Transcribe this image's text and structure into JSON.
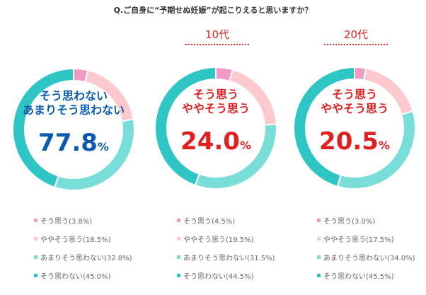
{
  "title": "Q.ご自身に“予期せぬ妊娠”が起こりえると思いますか？",
  "headers": [
    "",
    "10代",
    "20代"
  ],
  "colors": {
    "s1": "#f29ac6",
    "s2": "#fcc9cf",
    "s3": "#79ded8",
    "s4": "#2fc5c5",
    "blue_text": "#0a5bb0",
    "red_text": "#e02020"
  },
  "chart_data": [
    {
      "type": "pie",
      "header": "",
      "center_lines": [
        "そう思わない",
        "あまりそう思わない"
      ],
      "center_value": "77.8",
      "center_unit": "%",
      "center_color": "#0a5bb0",
      "slices": [
        {
          "label": "そう思う",
          "value": 3.8,
          "legend": "そう思う(3.8%)"
        },
        {
          "label": "ややそう思う",
          "value": 18.5,
          "legend": "ややそう思う(18.5%)"
        },
        {
          "label": "あまりそう思わない",
          "value": 32.8,
          "legend": "あまりそう思わない(32.8%)"
        },
        {
          "label": "そう思わない",
          "value": 45.0,
          "legend": "そう思わない(45.0%)"
        }
      ]
    },
    {
      "type": "pie",
      "header": "10代",
      "center_lines": [
        "そう思う",
        "ややそう思う"
      ],
      "center_value": "24.0",
      "center_unit": "%",
      "center_color": "#e02020",
      "slices": [
        {
          "label": "そう思う",
          "value": 4.5,
          "legend": "そう思う(4.5%)"
        },
        {
          "label": "ややそう思う",
          "value": 19.5,
          "legend": "ややそう思う(19.5%)"
        },
        {
          "label": "あまりそう思わない",
          "value": 31.5,
          "legend": "あまりそう思わない(31.5%)"
        },
        {
          "label": "そう思わない",
          "value": 44.5,
          "legend": "そう思わない(44.5%)"
        }
      ]
    },
    {
      "type": "pie",
      "header": "20代",
      "center_lines": [
        "そう思う",
        "ややそう思う"
      ],
      "center_value": "20.5",
      "center_unit": "%",
      "center_color": "#e02020",
      "slices": [
        {
          "label": "そう思う",
          "value": 3.0,
          "legend": "そう思う(3.0%)"
        },
        {
          "label": "ややそう思う",
          "value": 17.5,
          "legend": "ややそう思う(17.5%)"
        },
        {
          "label": "あまりそう思わない",
          "value": 34.0,
          "legend": "あまりそう思わない(34.0%)"
        },
        {
          "label": "そう思わない",
          "value": 45.5,
          "legend": "そう思わない(45.5%)"
        }
      ]
    }
  ]
}
